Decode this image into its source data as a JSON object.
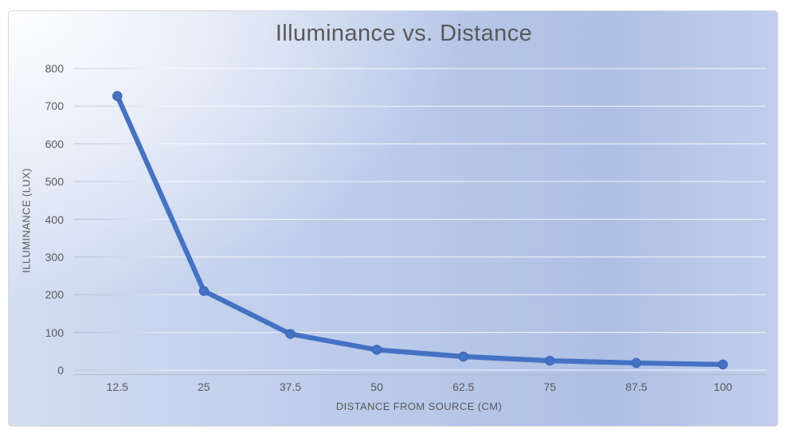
{
  "chart_data": {
    "type": "line",
    "title": "Illuminance vs. Distance",
    "xlabel": "DISTANCE FROM SOURCE (CM)",
    "ylabel": "ILLUMINANCE (LUX)",
    "categories": [
      "12.5",
      "25",
      "37.5",
      "50",
      "62.5",
      "75",
      "87.5",
      "100"
    ],
    "series": [
      {
        "name": "Illuminance",
        "values": [
          727,
          210,
          96,
          54,
          36,
          25,
          19,
          15
        ]
      }
    ],
    "ylim": [
      0,
      800
    ],
    "yticks": [
      800,
      700,
      600,
      500,
      400,
      300,
      200,
      100,
      0
    ],
    "grid": true,
    "legend": "none",
    "marker": "circle",
    "colors": {
      "series": "#4472C4",
      "marker_edge": "#3A62B2",
      "title_text": "#595959",
      "axis_text": "#595959",
      "axis_line": "#b6bdca",
      "gridline": "#ffffff",
      "background_light": "#fdfefe",
      "background_blue": "#aec0e4"
    }
  }
}
